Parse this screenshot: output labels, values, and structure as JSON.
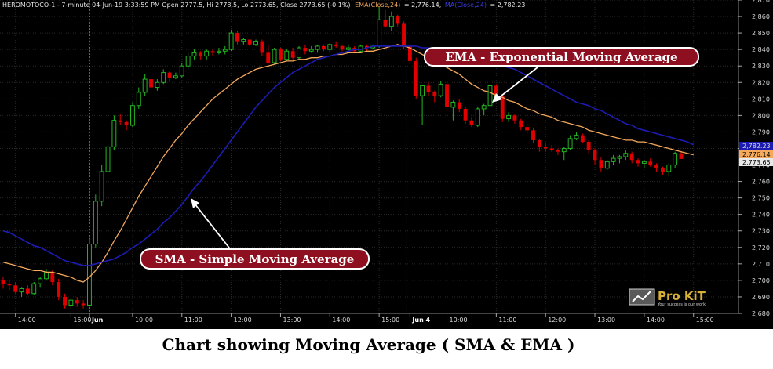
{
  "caption": "Chart showing Moving Average ( SMA & EMA )",
  "header": {
    "symbol_info": "HEROMOTOCO-1 - 7-minute 04-Jun-19 3:33:59 PM Open 2777.5, Hi 2778.5, Lo 2773.65, Close 2773.65 (-0.1%)",
    "ema_label": "EMA(Close,24)",
    "ema_value": "= 2,776.14,",
    "sma_label": "MA(Close,24)",
    "sma_value": "= 2,782.23"
  },
  "annotations": {
    "ema": "EMA - Exponential Moving Average",
    "sma": "SMA - Simple Moving Average"
  },
  "logo": {
    "name": "Pro KiT",
    "tagline": "Your success is our work"
  },
  "price_tags": {
    "sma": "2,782.23",
    "ema": "2,776.14",
    "close": "2,773.65"
  },
  "colors": {
    "background": "#000000",
    "up_candle": "#22b822",
    "down_candle": "#e00000",
    "ema_line": "#f5a95c",
    "sma_line": "#1c1cb4",
    "annotation_fill": "#8e1020",
    "grid": "#2a2a2a"
  },
  "chart_data": {
    "type": "candlestick",
    "title": "",
    "ylim": [
      2680,
      2870
    ],
    "y_ticks": [
      2680,
      2690,
      2700,
      2710,
      2720,
      2730,
      2740,
      2750,
      2760,
      2770,
      2780,
      2790,
      2800,
      2810,
      2820,
      2830,
      2840,
      2850,
      2860,
      2870
    ],
    "x_tick_labels": [
      "14:00",
      "15:00",
      "Jun",
      "10:00",
      "11:00",
      "12:00",
      "13:00",
      "14:00",
      "15:00",
      "Jun 4",
      "10:00",
      "11:00",
      "12:00",
      "13:00",
      "14:00",
      "15:00"
    ],
    "x_tick_index": [
      2,
      11,
      14,
      21,
      29,
      37,
      45,
      53,
      61,
      66,
      72,
      80,
      88,
      96,
      104,
      112
    ],
    "session_breaks": [
      14,
      65.5
    ],
    "candles": [
      [
        2700,
        2702,
        2695,
        2698
      ],
      [
        2698,
        2700,
        2694,
        2697
      ],
      [
        2697,
        2699,
        2692,
        2693
      ],
      [
        2693,
        2696,
        2690,
        2695
      ],
      [
        2695,
        2697,
        2691,
        2692
      ],
      [
        2692,
        2699,
        2691,
        2698
      ],
      [
        2698,
        2702,
        2696,
        2701
      ],
      [
        2701,
        2707,
        2700,
        2705
      ],
      [
        2705,
        2706,
        2697,
        2699
      ],
      [
        2699,
        2701,
        2688,
        2690
      ],
      [
        2690,
        2692,
        2683,
        2685
      ],
      [
        2685,
        2690,
        2683,
        2688
      ],
      [
        2688,
        2690,
        2684,
        2686
      ],
      [
        2686,
        2688,
        2683,
        2685
      ],
      [
        2685,
        2725,
        2684,
        2722
      ],
      [
        2722,
        2752,
        2720,
        2748
      ],
      [
        2748,
        2770,
        2745,
        2766
      ],
      [
        2766,
        2783,
        2764,
        2781
      ],
      [
        2781,
        2800,
        2779,
        2797
      ],
      [
        2797,
        2801,
        2794,
        2796
      ],
      [
        2796,
        2797,
        2791,
        2794
      ],
      [
        2794,
        2808,
        2793,
        2806
      ],
      [
        2806,
        2817,
        2804,
        2814
      ],
      [
        2814,
        2825,
        2812,
        2822
      ],
      [
        2822,
        2823,
        2815,
        2817
      ],
      [
        2817,
        2822,
        2815,
        2820
      ],
      [
        2820,
        2828,
        2819,
        2826
      ],
      [
        2826,
        2827,
        2820,
        2823
      ],
      [
        2823,
        2826,
        2822,
        2824
      ],
      [
        2824,
        2832,
        2823,
        2830
      ],
      [
        2830,
        2838,
        2828,
        2836
      ],
      [
        2836,
        2840,
        2834,
        2838
      ],
      [
        2838,
        2839,
        2834,
        2836
      ],
      [
        2836,
        2840,
        2834,
        2839
      ],
      [
        2839,
        2840,
        2836,
        2838
      ],
      [
        2838,
        2841,
        2837,
        2839
      ],
      [
        2839,
        2842,
        2837,
        2840
      ],
      [
        2840,
        2852,
        2839,
        2850
      ],
      [
        2850,
        2851,
        2843,
        2845
      ],
      [
        2845,
        2847,
        2843,
        2846
      ],
      [
        2846,
        2846,
        2842,
        2843
      ],
      [
        2843,
        2846,
        2842,
        2845
      ],
      [
        2845,
        2846,
        2836,
        2838
      ],
      [
        2838,
        2843,
        2831,
        2832
      ],
      [
        2832,
        2841,
        2831,
        2840
      ],
      [
        2840,
        2841,
        2833,
        2834
      ],
      [
        2834,
        2840,
        2833,
        2839
      ],
      [
        2839,
        2841,
        2834,
        2835
      ],
      [
        2835,
        2842,
        2834,
        2841
      ],
      [
        2841,
        2843,
        2837,
        2839
      ],
      [
        2839,
        2842,
        2838,
        2840
      ],
      [
        2840,
        2843,
        2838,
        2842
      ],
      [
        2842,
        2843,
        2839,
        2840
      ],
      [
        2840,
        2844,
        2838,
        2843
      ],
      [
        2843,
        2845,
        2841,
        2842
      ],
      [
        2842,
        2843,
        2839,
        2840
      ],
      [
        2840,
        2843,
        2838,
        2841
      ],
      [
        2841,
        2842,
        2838,
        2839
      ],
      [
        2839,
        2843,
        2838,
        2842
      ],
      [
        2842,
        2843,
        2839,
        2841
      ],
      [
        2841,
        2843,
        2840,
        2842
      ],
      [
        2842,
        2866,
        2841,
        2858
      ],
      [
        2858,
        2864,
        2853,
        2854
      ],
      [
        2854,
        2863,
        2851,
        2860
      ],
      [
        2860,
        2861,
        2854,
        2856
      ],
      [
        2856,
        2857,
        2840,
        2842
      ],
      [
        2842,
        2843,
        2831,
        2833
      ],
      [
        2833,
        2835,
        2810,
        2812
      ],
      [
        2812,
        2817,
        2794,
        2818
      ],
      [
        2818,
        2820,
        2812,
        2814
      ],
      [
        2814,
        2815,
        2808,
        2812
      ],
      [
        2812,
        2821,
        2811,
        2819
      ],
      [
        2819,
        2820,
        2803,
        2805
      ],
      [
        2805,
        2809,
        2797,
        2808
      ],
      [
        2808,
        2810,
        2802,
        2804
      ],
      [
        2804,
        2805,
        2795,
        2797
      ],
      [
        2797,
        2799,
        2793,
        2794
      ],
      [
        2794,
        2805,
        2793,
        2804
      ],
      [
        2804,
        2807,
        2800,
        2806
      ],
      [
        2806,
        2820,
        2805,
        2818
      ],
      [
        2818,
        2819,
        2810,
        2812
      ],
      [
        2812,
        2813,
        2796,
        2798
      ],
      [
        2798,
        2802,
        2796,
        2800
      ],
      [
        2800,
        2801,
        2795,
        2797
      ],
      [
        2797,
        2798,
        2791,
        2793
      ],
      [
        2793,
        2795,
        2789,
        2791
      ],
      [
        2791,
        2792,
        2783,
        2785
      ],
      [
        2785,
        2786,
        2778,
        2781
      ],
      [
        2781,
        2783,
        2778,
        2780
      ],
      [
        2780,
        2782,
        2778,
        2779
      ],
      [
        2779,
        2780,
        2776,
        2778
      ],
      [
        2778,
        2781,
        2773,
        2780
      ],
      [
        2780,
        2788,
        2779,
        2786
      ],
      [
        2786,
        2790,
        2785,
        2788
      ],
      [
        2788,
        2789,
        2783,
        2784
      ],
      [
        2784,
        2785,
        2777,
        2779
      ],
      [
        2779,
        2780,
        2770,
        2773
      ],
      [
        2773,
        2775,
        2766,
        2768
      ],
      [
        2768,
        2773,
        2767,
        2772
      ],
      [
        2772,
        2776,
        2770,
        2774
      ],
      [
        2774,
        2776,
        2771,
        2775
      ],
      [
        2775,
        2779,
        2773,
        2777
      ],
      [
        2777,
        2778,
        2771,
        2773
      ],
      [
        2773,
        2774,
        2769,
        2771
      ],
      [
        2771,
        2773,
        2768,
        2772
      ],
      [
        2772,
        2774,
        2769,
        2770
      ],
      [
        2770,
        2771,
        2766,
        2768
      ],
      [
        2768,
        2769,
        2764,
        2766
      ],
      [
        2766,
        2771,
        2763,
        2770
      ],
      [
        2770,
        2778,
        2768,
        2777
      ],
      [
        2777,
        2778.5,
        2773.65,
        2773.65
      ]
    ],
    "series": [
      {
        "name": "EMA(Close,24)",
        "values": [
          2711,
          2710,
          2709,
          2708,
          2707,
          2706,
          2706,
          2705,
          2705,
          2704,
          2703,
          2702,
          2700,
          2699,
          2702,
          2706,
          2711,
          2717,
          2724,
          2730,
          2737,
          2744,
          2751,
          2757,
          2763,
          2769,
          2775,
          2780,
          2785,
          2789,
          2794,
          2798,
          2802,
          2806,
          2810,
          2813,
          2816,
          2819,
          2822,
          2824,
          2826,
          2828,
          2829,
          2830,
          2831,
          2832,
          2833,
          2833,
          2834,
          2834,
          2835,
          2835,
          2836,
          2836,
          2837,
          2837,
          2838,
          2838,
          2838,
          2839,
          2839,
          2840,
          2841,
          2842,
          2843,
          2842,
          2841,
          2839,
          2837,
          2835,
          2833,
          2831,
          2829,
          2827,
          2825,
          2822,
          2819,
          2817,
          2815,
          2814,
          2812,
          2811,
          2809,
          2808,
          2806,
          2804,
          2803,
          2801,
          2800,
          2799,
          2797,
          2796,
          2795,
          2794,
          2793,
          2791,
          2790,
          2789,
          2788,
          2787,
          2786,
          2785,
          2785,
          2784,
          2784,
          2783,
          2782,
          2781,
          2780,
          2779,
          2778,
          2777,
          2776.14
        ]
      },
      {
        "name": "MA(Close,24)",
        "values": [
          2730,
          2729,
          2727,
          2725,
          2723,
          2721,
          2720,
          2718,
          2716,
          2714,
          2712,
          2711,
          2710,
          2709,
          2709,
          2710,
          2711,
          2712,
          2713,
          2715,
          2717,
          2720,
          2722,
          2725,
          2728,
          2731,
          2735,
          2738,
          2742,
          2746,
          2751,
          2756,
          2760,
          2765,
          2770,
          2775,
          2780,
          2785,
          2790,
          2795,
          2800,
          2805,
          2809,
          2813,
          2817,
          2820,
          2823,
          2826,
          2828,
          2830,
          2832,
          2834,
          2835,
          2836,
          2837,
          2838,
          2839,
          2840,
          2840,
          2841,
          2842,
          2842,
          2842,
          2842,
          2842,
          2842,
          2842,
          2842,
          2841,
          2841,
          2840,
          2840,
          2839,
          2838,
          2837,
          2836,
          2835,
          2834,
          2833,
          2832,
          2831,
          2830,
          2829,
          2828,
          2826,
          2824,
          2822,
          2820,
          2818,
          2816,
          2814,
          2812,
          2810,
          2808,
          2807,
          2806,
          2804,
          2803,
          2801,
          2799,
          2797,
          2795,
          2794,
          2792,
          2791,
          2790,
          2789,
          2788,
          2787,
          2786,
          2785,
          2784,
          2782.23
        ]
      }
    ]
  }
}
